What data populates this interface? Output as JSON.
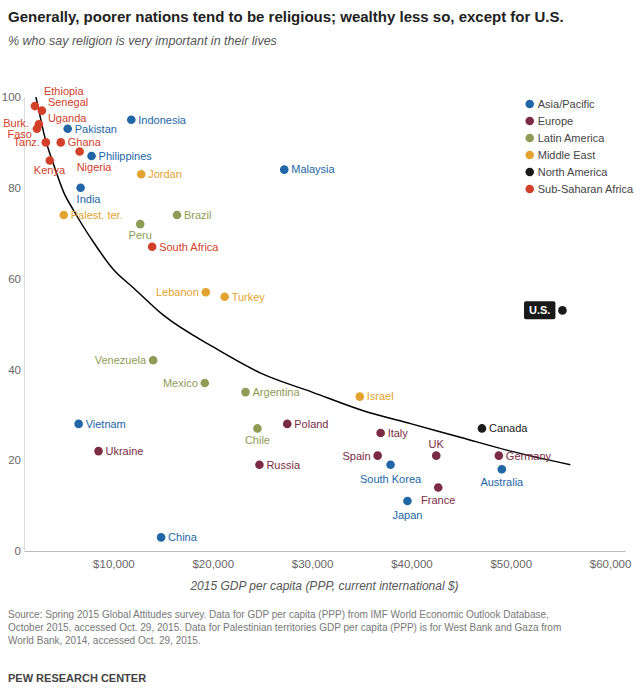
{
  "chart_data": {
    "type": "scatter",
    "title": "Generally, poorer nations tend to be religious; wealthy less so, except for U.S.",
    "subtitle": "% who say religion is very important in their lives",
    "x_label": "2015 GDP per capita (PPP, current international $)",
    "xlim": [
      1000,
      61500
    ],
    "xticks": [
      {
        "value": 10000,
        "label": "$10,000"
      },
      {
        "value": 20000,
        "label": "$20,000"
      },
      {
        "value": 30000,
        "label": "$30,000"
      },
      {
        "value": 40000,
        "label": "$40,000"
      },
      {
        "value": 50000,
        "label": "$50,000"
      },
      {
        "value": 60000,
        "label": "$60,000"
      }
    ],
    "ylim": [
      0,
      100
    ],
    "yticks": [
      0,
      20,
      40,
      60,
      80,
      100
    ],
    "grid": false,
    "legend": "upper right",
    "marker": "circle",
    "series": [
      {
        "name": "Asia/Pacific",
        "color": "#2166a6",
        "labels": [
          "Pakistan",
          "Indonesia",
          "Philippines",
          "India",
          "Malaysia",
          "Vietnam",
          "China",
          "South Korea",
          "Japan",
          "Australia"
        ],
        "x": [
          5400,
          11800,
          7800,
          6700,
          27200,
          6500,
          14800,
          37900,
          39600,
          49100
        ],
        "values": [
          93,
          95,
          87,
          80,
          84,
          28,
          3,
          19,
          11,
          18
        ]
      },
      {
        "name": "Europe",
        "color": "#7b2c44",
        "labels": [
          "Ukraine",
          "Russia",
          "Poland",
          "Italy",
          "Spain",
          "UK",
          "Germany",
          "France"
        ],
        "x": [
          8500,
          24700,
          27500,
          36900,
          36600,
          42500,
          48800,
          42700
        ],
        "values": [
          22,
          19,
          28,
          26,
          21,
          21,
          21,
          14
        ]
      },
      {
        "name": "Latin America",
        "color": "#8e9c55",
        "labels": [
          "Brazil",
          "Peru",
          "Venezuela",
          "Mexico",
          "Argentina",
          "Chile"
        ],
        "x": [
          16400,
          12700,
          14000,
          19200,
          23300,
          24500
        ],
        "values": [
          74,
          72,
          42,
          37,
          35,
          27
        ]
      },
      {
        "name": "Middle East",
        "color": "#e3a330",
        "labels": [
          "Jordan",
          "Palest. ter.",
          "Lebanon",
          "Turkey",
          "Israel"
        ],
        "x": [
          12800,
          5000,
          19300,
          21200,
          34800
        ],
        "values": [
          83,
          74,
          57,
          56,
          34
        ]
      },
      {
        "name": "North America",
        "color": "#1a1a1a",
        "labels": [
          "U.S.",
          "Canada"
        ],
        "x": [
          55200,
          47100
        ],
        "values": [
          53,
          27
        ]
      },
      {
        "name": "Sub-Saharan Africa",
        "color": "#d2402a",
        "labels": [
          "Ethiopia",
          "Senegal",
          "Uganda",
          "Burk. Faso",
          "Tanz.",
          "Ghana",
          "Kenya",
          "Nigeria",
          "South Africa"
        ],
        "x": [
          2100,
          2800,
          2500,
          2300,
          3200,
          4700,
          3600,
          6600,
          13900
        ],
        "values": [
          98,
          97,
          94,
          93,
          90,
          90,
          86,
          88,
          67
        ]
      },
      {
        "type": "line",
        "color": "#000000",
        "line_style": "solid",
        "x": [
          2200,
          2500,
          3000,
          4000,
          5000,
          6000,
          8000,
          10000,
          12000,
          15000,
          20000,
          25000,
          30000,
          35000,
          40000,
          45000,
          50000,
          56000
        ],
        "values": [
          100,
          97,
          92,
          85,
          79,
          75,
          68,
          62,
          58,
          52,
          45,
          39,
          35,
          31,
          28,
          25,
          22,
          19
        ]
      }
    ],
    "source": [
      "Source: Spring 2015 Global Attitudes survey. Data for GDP per capita (PPP) from IMF World Economic Outlook Database,",
      "October 2015, accessed Oct. 29, 2015. Data for Palestinian territories GDP per capita (PPP) is for West Bank and Gaza from",
      "World Bank, 2014, accessed Oct. 29, 2015."
    ],
    "credit": "PEW RESEARCH CENTER"
  }
}
